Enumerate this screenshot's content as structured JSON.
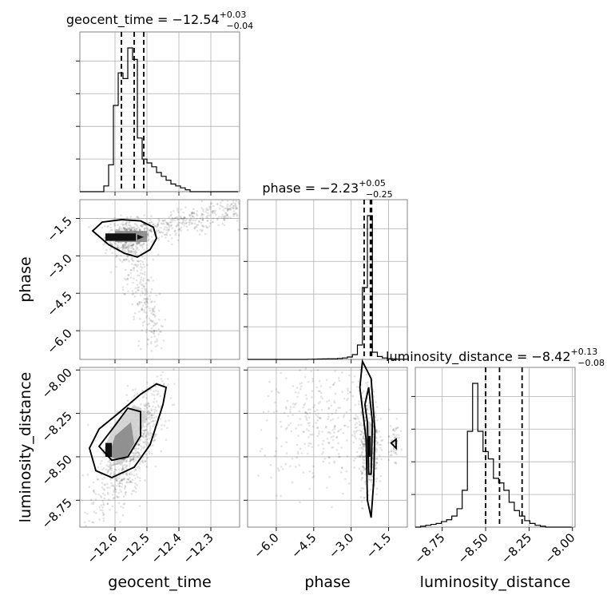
{
  "chart_data": {
    "type": "corner",
    "parameters": [
      "geocent_time",
      "phase",
      "luminosity_distance"
    ],
    "titles": {
      "geocent_time": {
        "prefix": "geocent_time = ",
        "median": "−12.54",
        "plus": "+0.03",
        "minus": "−0.04"
      },
      "phase": {
        "prefix": "phase = ",
        "median": "−2.23",
        "plus": "+0.05",
        "minus": "−0.25"
      },
      "luminosity_distance": {
        "prefix": "luminosity_distance = ",
        "median": "−8.42",
        "plus": "+0.13",
        "minus": "−0.08"
      }
    },
    "axis_labels": {
      "geocent_time": "geocent_time",
      "phase": "phase",
      "luminosity_distance": "luminosity_distance"
    },
    "ranges": {
      "geocent_time": [
        -12.71,
        -12.21
      ],
      "phase": [
        -7.15,
        -0.75
      ],
      "luminosity_distance": [
        -8.905,
        -7.985
      ]
    },
    "ticks": {
      "geocent_time": [
        -12.6,
        -12.5,
        -12.4,
        -12.3
      ],
      "phase": [
        -6.0,
        -4.5,
        -3.0,
        -1.5
      ],
      "luminosity_distance": [
        -8.75,
        -8.5,
        -8.25,
        -8.0
      ]
    },
    "tick_labels": {
      "geocent_time": [
        "−12.6",
        "−12.5",
        "−12.4",
        "−12.3"
      ],
      "phase": [
        "−6.0",
        "−4.5",
        "−3.0",
        "−1.5"
      ],
      "luminosity_distance": [
        "−8.75",
        "−8.50",
        "−8.25",
        "−8.00"
      ]
    },
    "quantiles": {
      "geocent_time": [
        -12.58,
        -12.54,
        -12.51
      ],
      "phase": [
        -2.48,
        -2.23,
        -2.18
      ],
      "luminosity_distance": [
        -8.5,
        -8.42,
        -8.29
      ]
    },
    "histograms": {
      "geocent_time": {
        "edges": [
          -12.71,
          -12.695,
          -12.68,
          -12.665,
          -12.65,
          -12.635,
          -12.62,
          -12.605,
          -12.59,
          -12.575,
          -12.56,
          -12.545,
          -12.53,
          -12.515,
          -12.5,
          -12.485,
          -12.47,
          -12.455,
          -12.44,
          -12.425,
          -12.41,
          -12.395,
          -12.38,
          -12.365,
          -12.35,
          -12.335,
          -12.32,
          -12.305,
          -12.29,
          -12.275,
          -12.26,
          -12.245,
          -12.23,
          -12.215
        ],
        "counts": [
          0,
          0,
          0,
          0,
          0,
          3,
          14,
          45,
          62,
          59,
          75,
          69,
          28,
          17,
          15,
          13,
          10,
          8,
          6,
          4,
          3,
          2,
          1,
          0,
          0,
          0,
          0,
          0,
          0,
          0,
          0,
          0,
          0
        ]
      },
      "phase": {
        "edges": [
          -7.15,
          -6.95,
          -6.75,
          -6.55,
          -6.35,
          -6.15,
          -5.95,
          -5.75,
          -5.55,
          -5.35,
          -5.15,
          -4.95,
          -4.75,
          -4.55,
          -4.35,
          -4.15,
          -3.95,
          -3.75,
          -3.55,
          -3.35,
          -3.15,
          -2.95,
          -2.75,
          -2.55,
          -2.35,
          -2.15,
          -1.95,
          -1.75,
          -1.55,
          -1.35,
          -1.15,
          -0.95,
          -0.75
        ],
        "counts": [
          0,
          0,
          0,
          0,
          0,
          0,
          0,
          0,
          0,
          0,
          0,
          0,
          0.3,
          0.5,
          0.8,
          1,
          1.2,
          1.3,
          2,
          3,
          5,
          10,
          30,
          150,
          300,
          15,
          6,
          3,
          1.5,
          0.8,
          0.3,
          0.2
        ]
      },
      "luminosity_distance": {
        "edges": [
          -8.905,
          -8.875,
          -8.845,
          -8.815,
          -8.785,
          -8.755,
          -8.725,
          -8.695,
          -8.665,
          -8.635,
          -8.605,
          -8.575,
          -8.545,
          -8.515,
          -8.485,
          -8.455,
          -8.425,
          -8.395,
          -8.365,
          -8.335,
          -8.305,
          -8.275,
          -8.245,
          -8.215,
          -8.185,
          -8.155,
          -8.125,
          -8.095,
          -8.065,
          -8.035,
          -8.005
        ],
        "counts": [
          0,
          1,
          2,
          3,
          4,
          6,
          8,
          12,
          20,
          40,
          104,
          156,
          104,
          82,
          74,
          53,
          48,
          40,
          27,
          18,
          12,
          7,
          4,
          2,
          1,
          0,
          0,
          0,
          0,
          0
        ]
      }
    },
    "contours_2d": {
      "phase_vs_geocent_time": [
        [
          [
            -12.67,
            -2.0
          ],
          [
            -12.64,
            -1.65
          ],
          [
            -12.58,
            -1.55
          ],
          [
            -12.52,
            -1.6
          ],
          [
            -12.48,
            -1.85
          ],
          [
            -12.47,
            -2.3
          ],
          [
            -12.49,
            -2.75
          ],
          [
            -12.53,
            -3.05
          ],
          [
            -12.57,
            -2.9
          ],
          [
            -12.62,
            -2.55
          ]
        ]
      ],
      "luminosity_distance_vs_geocent_time": [
        [
          [
            -12.68,
            -8.45
          ],
          [
            -12.66,
            -8.58
          ],
          [
            -12.61,
            -8.62
          ],
          [
            -12.54,
            -8.56
          ],
          [
            -12.49,
            -8.43
          ],
          [
            -12.45,
            -8.2
          ],
          [
            -12.44,
            -8.1
          ],
          [
            -12.47,
            -8.08
          ],
          [
            -12.52,
            -8.14
          ],
          [
            -12.59,
            -8.25
          ],
          [
            -12.65,
            -8.34
          ]
        ]
      ],
      "luminosity_distance_vs_phase": [
        [
          [
            -2.4,
            -8.4
          ],
          [
            -2.65,
            -8.1
          ],
          [
            -2.55,
            -7.95
          ],
          [
            -2.2,
            -8.05
          ],
          [
            -2.05,
            -8.35
          ],
          [
            -2.1,
            -8.65
          ],
          [
            -2.2,
            -8.85
          ],
          [
            -2.35,
            -8.75
          ]
        ]
      ]
    },
    "grid": true
  }
}
